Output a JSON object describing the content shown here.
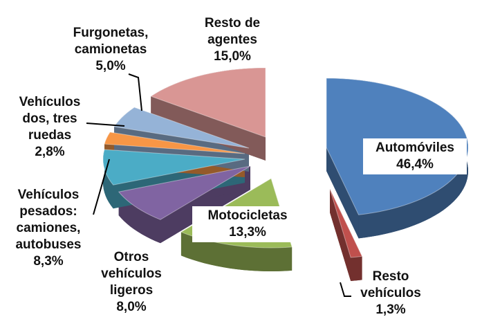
{
  "chart_data": {
    "type": "pie",
    "categories": [
      "Automóviles",
      "Resto vehículos",
      "Motocicletas",
      "Otros vehículos ligeros",
      "Vehículos pesados: camiones, autobuses",
      "Vehículos dos, tres ruedas",
      "Furgonetas, camionetas",
      "Resto de agentes"
    ],
    "values": [
      46.4,
      1.3,
      13.3,
      8.0,
      8.3,
      2.8,
      5.0,
      15.0
    ],
    "value_labels": [
      "46,4%",
      "1,3%",
      "13,3%",
      "8,0%",
      "8,3%",
      "2,8%",
      "5,0%",
      "15,0%"
    ],
    "colors": [
      "#4f81bd",
      "#c0504d",
      "#9bbb59",
      "#8064a2",
      "#4bacc6",
      "#f79646",
      "#95b3d7",
      "#d99694"
    ]
  }
}
